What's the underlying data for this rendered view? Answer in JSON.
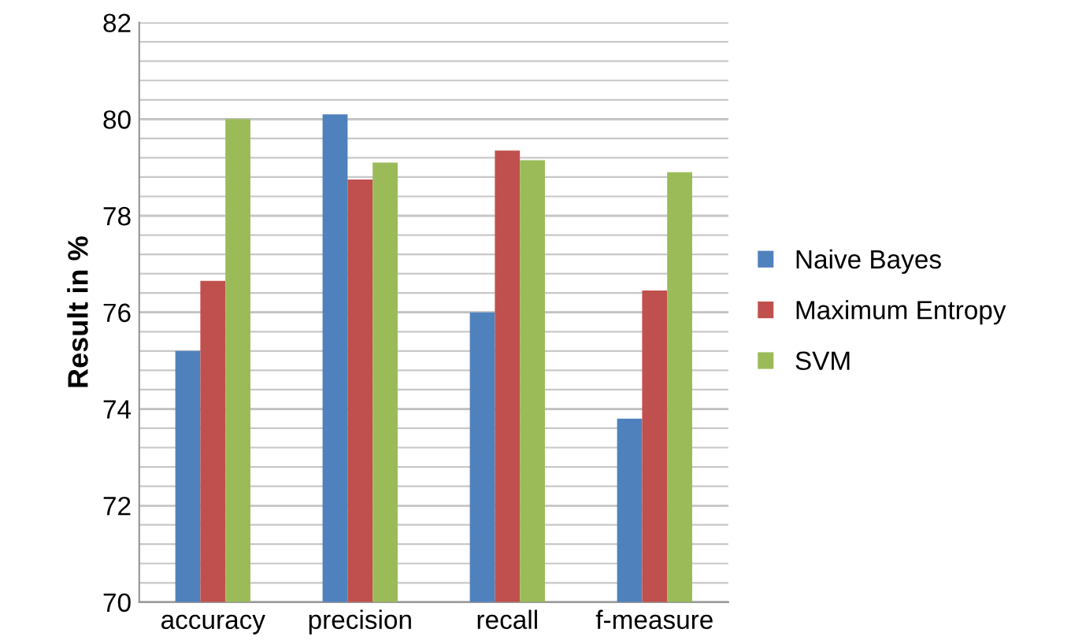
{
  "chart_data": {
    "type": "bar",
    "ylabel": "Result in %",
    "categories": [
      "accuracy",
      "precision",
      "recall",
      "f-measure"
    ],
    "series": [
      {
        "name": "Naive Bayes",
        "color": "#4f81bd",
        "values": [
          75.2,
          80.1,
          76.0,
          73.8
        ]
      },
      {
        "name": "Maximum Entropy",
        "color": "#c0504d",
        "values": [
          76.65,
          78.75,
          79.35,
          76.45
        ]
      },
      {
        "name": "SVM",
        "color": "#9bbb59",
        "values": [
          80.0,
          79.1,
          79.15,
          78.9
        ]
      }
    ],
    "ylim": [
      70,
      82
    ],
    "yticks": [
      70,
      {
        "value": 70.4,
        "label": null
      },
      {
        "value": 70.8,
        "label": null
      },
      {
        "value": 71.2,
        "label": null
      },
      {
        "value": 71.6,
        "label": null
      },
      72,
      {
        "value": 72.4,
        "label": null
      },
      {
        "value": 72.8,
        "label": null
      },
      {
        "value": 73.2,
        "label": null
      },
      {
        "value": 73.6,
        "label": null
      },
      74,
      {
        "value": 74.4,
        "label": null
      },
      {
        "value": 74.8,
        "label": null
      },
      {
        "value": 75.2,
        "label": null
      },
      {
        "value": 75.6,
        "label": null
      },
      76,
      {
        "value": 76.4,
        "label": null
      },
      {
        "value": 76.8,
        "label": null
      },
      {
        "value": 77.2,
        "label": null
      },
      {
        "value": 77.6,
        "label": null
      },
      78,
      {
        "value": 78.4,
        "label": null
      },
      {
        "value": 78.8,
        "label": null
      },
      {
        "value": 79.2,
        "label": null
      },
      {
        "value": 79.6,
        "label": null
      },
      80,
      {
        "value": 80.4,
        "label": null
      },
      {
        "value": 80.8,
        "label": null
      },
      {
        "value": 81.2,
        "label": null
      },
      {
        "value": 81.6,
        "label": null
      },
      82
    ],
    "grid": "y",
    "legend": "right"
  }
}
